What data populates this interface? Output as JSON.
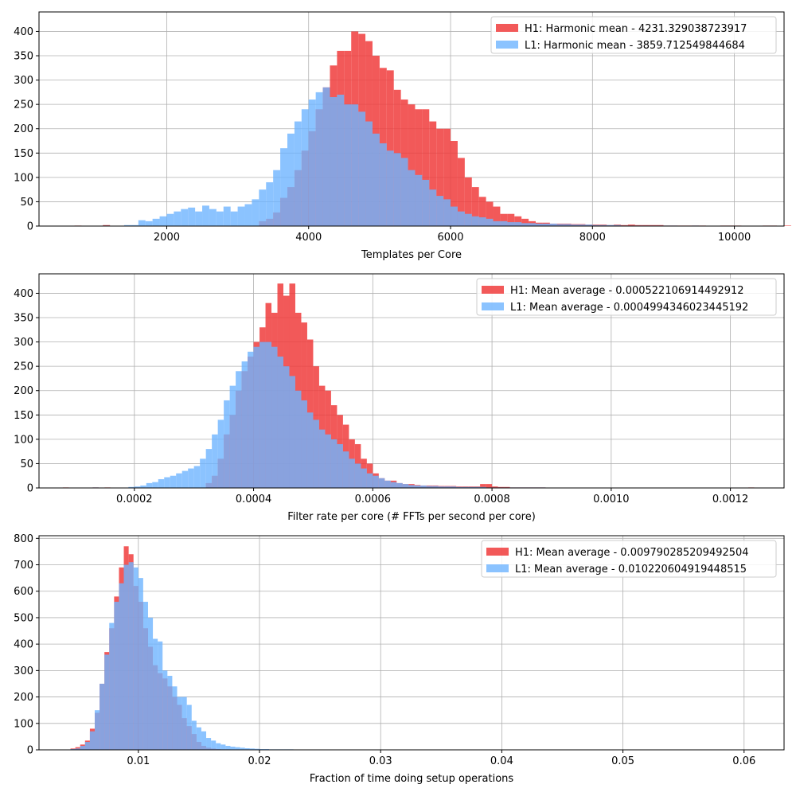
{
  "colors": {
    "h1": "#f03c3c",
    "l1": "#6eb4ff",
    "grid": "#b0b0b0",
    "axis": "#000000"
  },
  "chart_data": [
    {
      "type": "histogram",
      "xlabel": "Templates per Core",
      "ylabel": "",
      "xlim": [
        200,
        10700
      ],
      "ylim": [
        0,
        440
      ],
      "xticks": [
        2000,
        4000,
        6000,
        8000,
        10000
      ],
      "xtick_labels": [
        "2000",
        "4000",
        "6000",
        "8000",
        "10000"
      ],
      "yticks": [
        0,
        50,
        100,
        150,
        200,
        250,
        300,
        350,
        400
      ],
      "grid": true,
      "legend_position": "top-right",
      "bin_start": 600,
      "bin_width": 100,
      "series": [
        {
          "name": "H1: Harmonic mean  - 4231.329038723917",
          "color": "#f03c3c",
          "opacity": 0.85,
          "values": [
            0,
            1,
            0,
            0,
            0,
            2,
            0,
            0,
            0,
            0,
            0,
            0,
            0,
            0,
            0,
            0,
            0,
            0,
            0,
            0,
            0,
            0,
            0,
            0,
            0,
            0,
            0,
            10,
            15,
            28,
            58,
            80,
            115,
            155,
            195,
            240,
            285,
            330,
            360,
            360,
            400,
            395,
            380,
            350,
            325,
            320,
            280,
            260,
            250,
            240,
            240,
            215,
            200,
            200,
            175,
            140,
            100,
            80,
            60,
            50,
            40,
            25,
            25,
            20,
            15,
            10,
            7,
            7,
            5,
            5,
            5,
            4,
            4,
            3,
            3,
            3,
            2,
            3,
            2,
            3,
            2,
            2,
            2,
            2,
            1,
            1,
            1,
            1,
            1,
            1,
            0,
            0,
            1,
            1,
            1,
            0,
            0,
            0,
            1,
            1,
            0,
            1,
            0,
            0,
            0,
            0
          ]
        },
        {
          "name": "L1: Harmonic mean  - 3859.712549844684",
          "color": "#6eb4ff",
          "opacity": 0.8,
          "values": [
            0,
            0,
            0,
            0,
            0,
            1,
            0,
            0,
            2,
            2,
            12,
            10,
            15,
            20,
            25,
            30,
            35,
            38,
            30,
            42,
            35,
            30,
            40,
            30,
            40,
            45,
            55,
            75,
            90,
            115,
            160,
            190,
            215,
            240,
            260,
            275,
            285,
            265,
            270,
            250,
            250,
            235,
            215,
            190,
            170,
            155,
            150,
            140,
            115,
            105,
            95,
            75,
            62,
            55,
            40,
            30,
            25,
            20,
            18,
            15,
            10,
            10,
            8,
            8,
            6,
            6,
            5,
            5,
            5,
            4,
            4,
            3,
            3,
            3,
            2,
            2,
            2,
            2,
            1,
            1,
            1,
            1,
            1,
            1,
            1,
            1,
            0,
            0,
            1,
            0,
            0,
            0,
            0,
            0,
            0,
            0,
            0,
            0,
            0,
            0,
            0,
            0,
            0,
            0,
            0,
            0
          ]
        }
      ]
    },
    {
      "type": "histogram",
      "xlabel": "Filter rate per core (# FFTs per second per core)",
      "ylabel": "",
      "xlim": [
        4e-05,
        0.00129
      ],
      "ylim": [
        0,
        440
      ],
      "xticks": [
        0.0002,
        0.0004,
        0.0006,
        0.0008,
        0.001,
        0.0012
      ],
      "xtick_labels": [
        "0.0002",
        "0.0004",
        "0.0006",
        "0.0008",
        "0.0010",
        "0.0012"
      ],
      "yticks": [
        0,
        50,
        100,
        150,
        200,
        250,
        300,
        350,
        400
      ],
      "grid": true,
      "legend_position": "top-right",
      "bin_start": 8e-05,
      "bin_width": 1e-05,
      "series": [
        {
          "name": "H1: Mean average - 0.000522106914492912",
          "color": "#f03c3c",
          "opacity": 0.85,
          "values": [
            1,
            0,
            0,
            0,
            0,
            1,
            0,
            1,
            0,
            0,
            0,
            0,
            0,
            0,
            0,
            0,
            0,
            0,
            0,
            0,
            0,
            0,
            0,
            0,
            10,
            25,
            60,
            110,
            150,
            200,
            240,
            270,
            300,
            330,
            380,
            360,
            420,
            395,
            420,
            360,
            340,
            305,
            250,
            210,
            200,
            170,
            150,
            130,
            100,
            90,
            60,
            50,
            30,
            20,
            15,
            15,
            10,
            8,
            8,
            6,
            5,
            5,
            5,
            4,
            4,
            4,
            3,
            3,
            3,
            3,
            8,
            8,
            3,
            2,
            2,
            1,
            1,
            1,
            1,
            1,
            1,
            0,
            0,
            0,
            0,
            0,
            0,
            0,
            0,
            0,
            0,
            0,
            0,
            0,
            0,
            0,
            0,
            0,
            0,
            0,
            0,
            0,
            0,
            0,
            0,
            0,
            0,
            0,
            0,
            0,
            0,
            0,
            0,
            0,
            0,
            1,
            0,
            0,
            0,
            0,
            0,
            0,
            0,
            0,
            0
          ]
        },
        {
          "name": "L1: Mean average - 0.0004994346023445192",
          "color": "#6eb4ff",
          "opacity": 0.8,
          "values": [
            0,
            0,
            0,
            0,
            0,
            1,
            0,
            0,
            0,
            0,
            0,
            2,
            3,
            5,
            10,
            12,
            18,
            22,
            25,
            30,
            35,
            40,
            45,
            60,
            80,
            110,
            140,
            180,
            210,
            240,
            260,
            280,
            290,
            300,
            300,
            290,
            270,
            250,
            230,
            200,
            180,
            155,
            140,
            120,
            110,
            100,
            90,
            75,
            60,
            50,
            40,
            30,
            25,
            20,
            15,
            12,
            10,
            8,
            6,
            5,
            5,
            4,
            4,
            3,
            3,
            3,
            2,
            2,
            2,
            2,
            2,
            1,
            1,
            1,
            1,
            1,
            1,
            1,
            1,
            1,
            1,
            0,
            0,
            0,
            0,
            0,
            0,
            0,
            0,
            0,
            0,
            0,
            0,
            0,
            0,
            0,
            0,
            0,
            0,
            0,
            0,
            0,
            0,
            0,
            0,
            0,
            0,
            0,
            0,
            0,
            0,
            0,
            0,
            0,
            0,
            0,
            0,
            0,
            0,
            0,
            0,
            0,
            0,
            0,
            0
          ]
        }
      ]
    },
    {
      "type": "histogram",
      "xlabel": "Fraction of time doing setup operations",
      "ylabel": "",
      "xlim": [
        0.0018,
        0.0633
      ],
      "ylim": [
        0,
        810
      ],
      "xticks": [
        0.01,
        0.02,
        0.03,
        0.04,
        0.05,
        0.06
      ],
      "xtick_labels": [
        "0.01",
        "0.02",
        "0.03",
        "0.04",
        "0.05",
        "0.06"
      ],
      "yticks": [
        0,
        100,
        200,
        300,
        400,
        500,
        600,
        700,
        800
      ],
      "grid": true,
      "legend_position": "top-right",
      "bin_start": 0.0044,
      "bin_width": 0.0004,
      "series": [
        {
          "name": "H1: Mean average - 0.009790285209492504",
          "color": "#f03c3c",
          "opacity": 0.85,
          "values": [
            5,
            10,
            20,
            35,
            80,
            140,
            250,
            370,
            460,
            580,
            690,
            770,
            740,
            620,
            560,
            460,
            390,
            320,
            290,
            270,
            240,
            200,
            170,
            120,
            90,
            60,
            30,
            15,
            8,
            5,
            3,
            2,
            2,
            1,
            1,
            1,
            1,
            0,
            0,
            0,
            0,
            0,
            0,
            0,
            0,
            0,
            0,
            0,
            0,
            0,
            0,
            0,
            0,
            0,
            0,
            0,
            0,
            0,
            0,
            0,
            0,
            0,
            0,
            0,
            0,
            0,
            0,
            0,
            0,
            0,
            0,
            0,
            0,
            0,
            0,
            0,
            0,
            0,
            0,
            0,
            0,
            0,
            0,
            0,
            0,
            0,
            0,
            0,
            0,
            0,
            0,
            0,
            0,
            0,
            0,
            0,
            0,
            0,
            0,
            0,
            0,
            0,
            0,
            0,
            0,
            0,
            0,
            0,
            0,
            0,
            0,
            0,
            0,
            0,
            0,
            0,
            0,
            0,
            0,
            0,
            0,
            0,
            0,
            0,
            0,
            0,
            0,
            0,
            0,
            0,
            0,
            0,
            0,
            0,
            0,
            0,
            0,
            0,
            0,
            0,
            0,
            0,
            0,
            0,
            0,
            0,
            0,
            0,
            0
          ]
        },
        {
          "name": "L1: Mean average - 0.010220604919448515",
          "color": "#6eb4ff",
          "opacity": 0.8,
          "values": [
            3,
            5,
            15,
            30,
            70,
            150,
            250,
            360,
            480,
            560,
            630,
            700,
            710,
            690,
            650,
            560,
            500,
            420,
            410,
            300,
            280,
            240,
            200,
            200,
            170,
            110,
            85,
            70,
            45,
            35,
            25,
            20,
            15,
            12,
            10,
            8,
            6,
            5,
            4,
            3,
            3,
            2,
            2,
            2,
            2,
            2,
            1,
            1,
            1,
            1,
            1,
            1,
            1,
            1,
            1,
            1,
            0,
            0,
            0,
            0,
            0,
            0,
            0,
            0,
            0,
            0,
            0,
            0,
            0,
            0,
            0,
            0,
            0,
            0,
            0,
            0,
            0,
            0,
            0,
            0,
            0,
            0,
            0,
            0,
            0,
            0,
            0,
            0,
            0,
            0,
            0,
            0,
            0,
            0,
            0,
            0,
            0,
            0,
            0,
            0,
            0,
            0,
            0,
            0,
            0,
            0,
            0,
            0,
            0,
            0,
            0,
            0,
            0,
            0,
            0,
            0,
            0,
            0,
            0,
            0,
            0,
            0,
            0,
            0,
            0,
            0,
            0,
            0,
            0,
            0,
            0,
            0,
            0,
            0,
            0,
            0,
            0,
            0,
            0,
            0,
            0,
            0,
            0,
            0,
            0,
            1,
            0,
            0,
            0
          ]
        }
      ]
    }
  ]
}
